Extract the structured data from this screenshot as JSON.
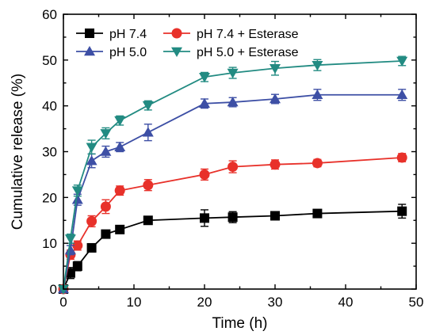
{
  "chart_data": {
    "type": "line",
    "title": "",
    "xlabel": "Time (h)",
    "ylabel": "Cumulative release (%)",
    "xlim": [
      0,
      50
    ],
    "ylim": [
      0,
      60
    ],
    "x_ticks": [
      0,
      10,
      20,
      30,
      40,
      50
    ],
    "y_ticks": [
      0,
      10,
      20,
      30,
      40,
      50,
      60
    ],
    "grid": false,
    "legend_position": "top-left",
    "x": [
      0,
      1,
      2,
      4,
      6,
      8,
      12,
      20,
      24,
      30,
      36,
      48
    ],
    "series": [
      {
        "name": "pH 7.4",
        "color": "#000000",
        "marker": "square",
        "values": [
          0,
          3.5,
          5,
          9,
          12,
          13,
          15,
          15.5,
          15.7,
          16,
          16.5,
          17
        ],
        "errors": [
          0,
          1.2,
          1.0,
          0.8,
          0.7,
          0.6,
          0.7,
          1.8,
          1.2,
          0.9,
          0.7,
          1.5
        ]
      },
      {
        "name": "pH 7.4 + Esterase",
        "color": "#e8312a",
        "marker": "circle",
        "values": [
          0,
          7.5,
          9.5,
          14.8,
          18,
          21.5,
          22.7,
          25,
          26.7,
          27.2,
          27.5,
          28.7
        ],
        "errors": [
          0,
          1.0,
          1.0,
          1.2,
          1.5,
          1.0,
          1.2,
          1.2,
          1.3,
          1.0,
          0.8,
          0.9
        ]
      },
      {
        "name": "pH 5.0",
        "color": "#3d4fa5",
        "marker": "triangle-up",
        "values": [
          0,
          8.5,
          19.5,
          28,
          30,
          31,
          34.2,
          40.5,
          40.8,
          41.5,
          42.4,
          42.4
        ],
        "errors": [
          0,
          1.0,
          1.2,
          1.5,
          1.2,
          1.0,
          1.8,
          1.0,
          1.0,
          1.0,
          1.2,
          1.2
        ]
      },
      {
        "name": "pH 5.0 + Esterase",
        "color": "#228b82",
        "marker": "triangle-down",
        "values": [
          0,
          11,
          21.5,
          31,
          34,
          36.8,
          40.1,
          46.3,
          47.2,
          48.2,
          48.9,
          49.8
        ],
        "errors": [
          0,
          1.0,
          1.2,
          1.5,
          1.2,
          1.0,
          1.0,
          1.0,
          1.2,
          1.5,
          1.2,
          1.0
        ]
      }
    ]
  }
}
